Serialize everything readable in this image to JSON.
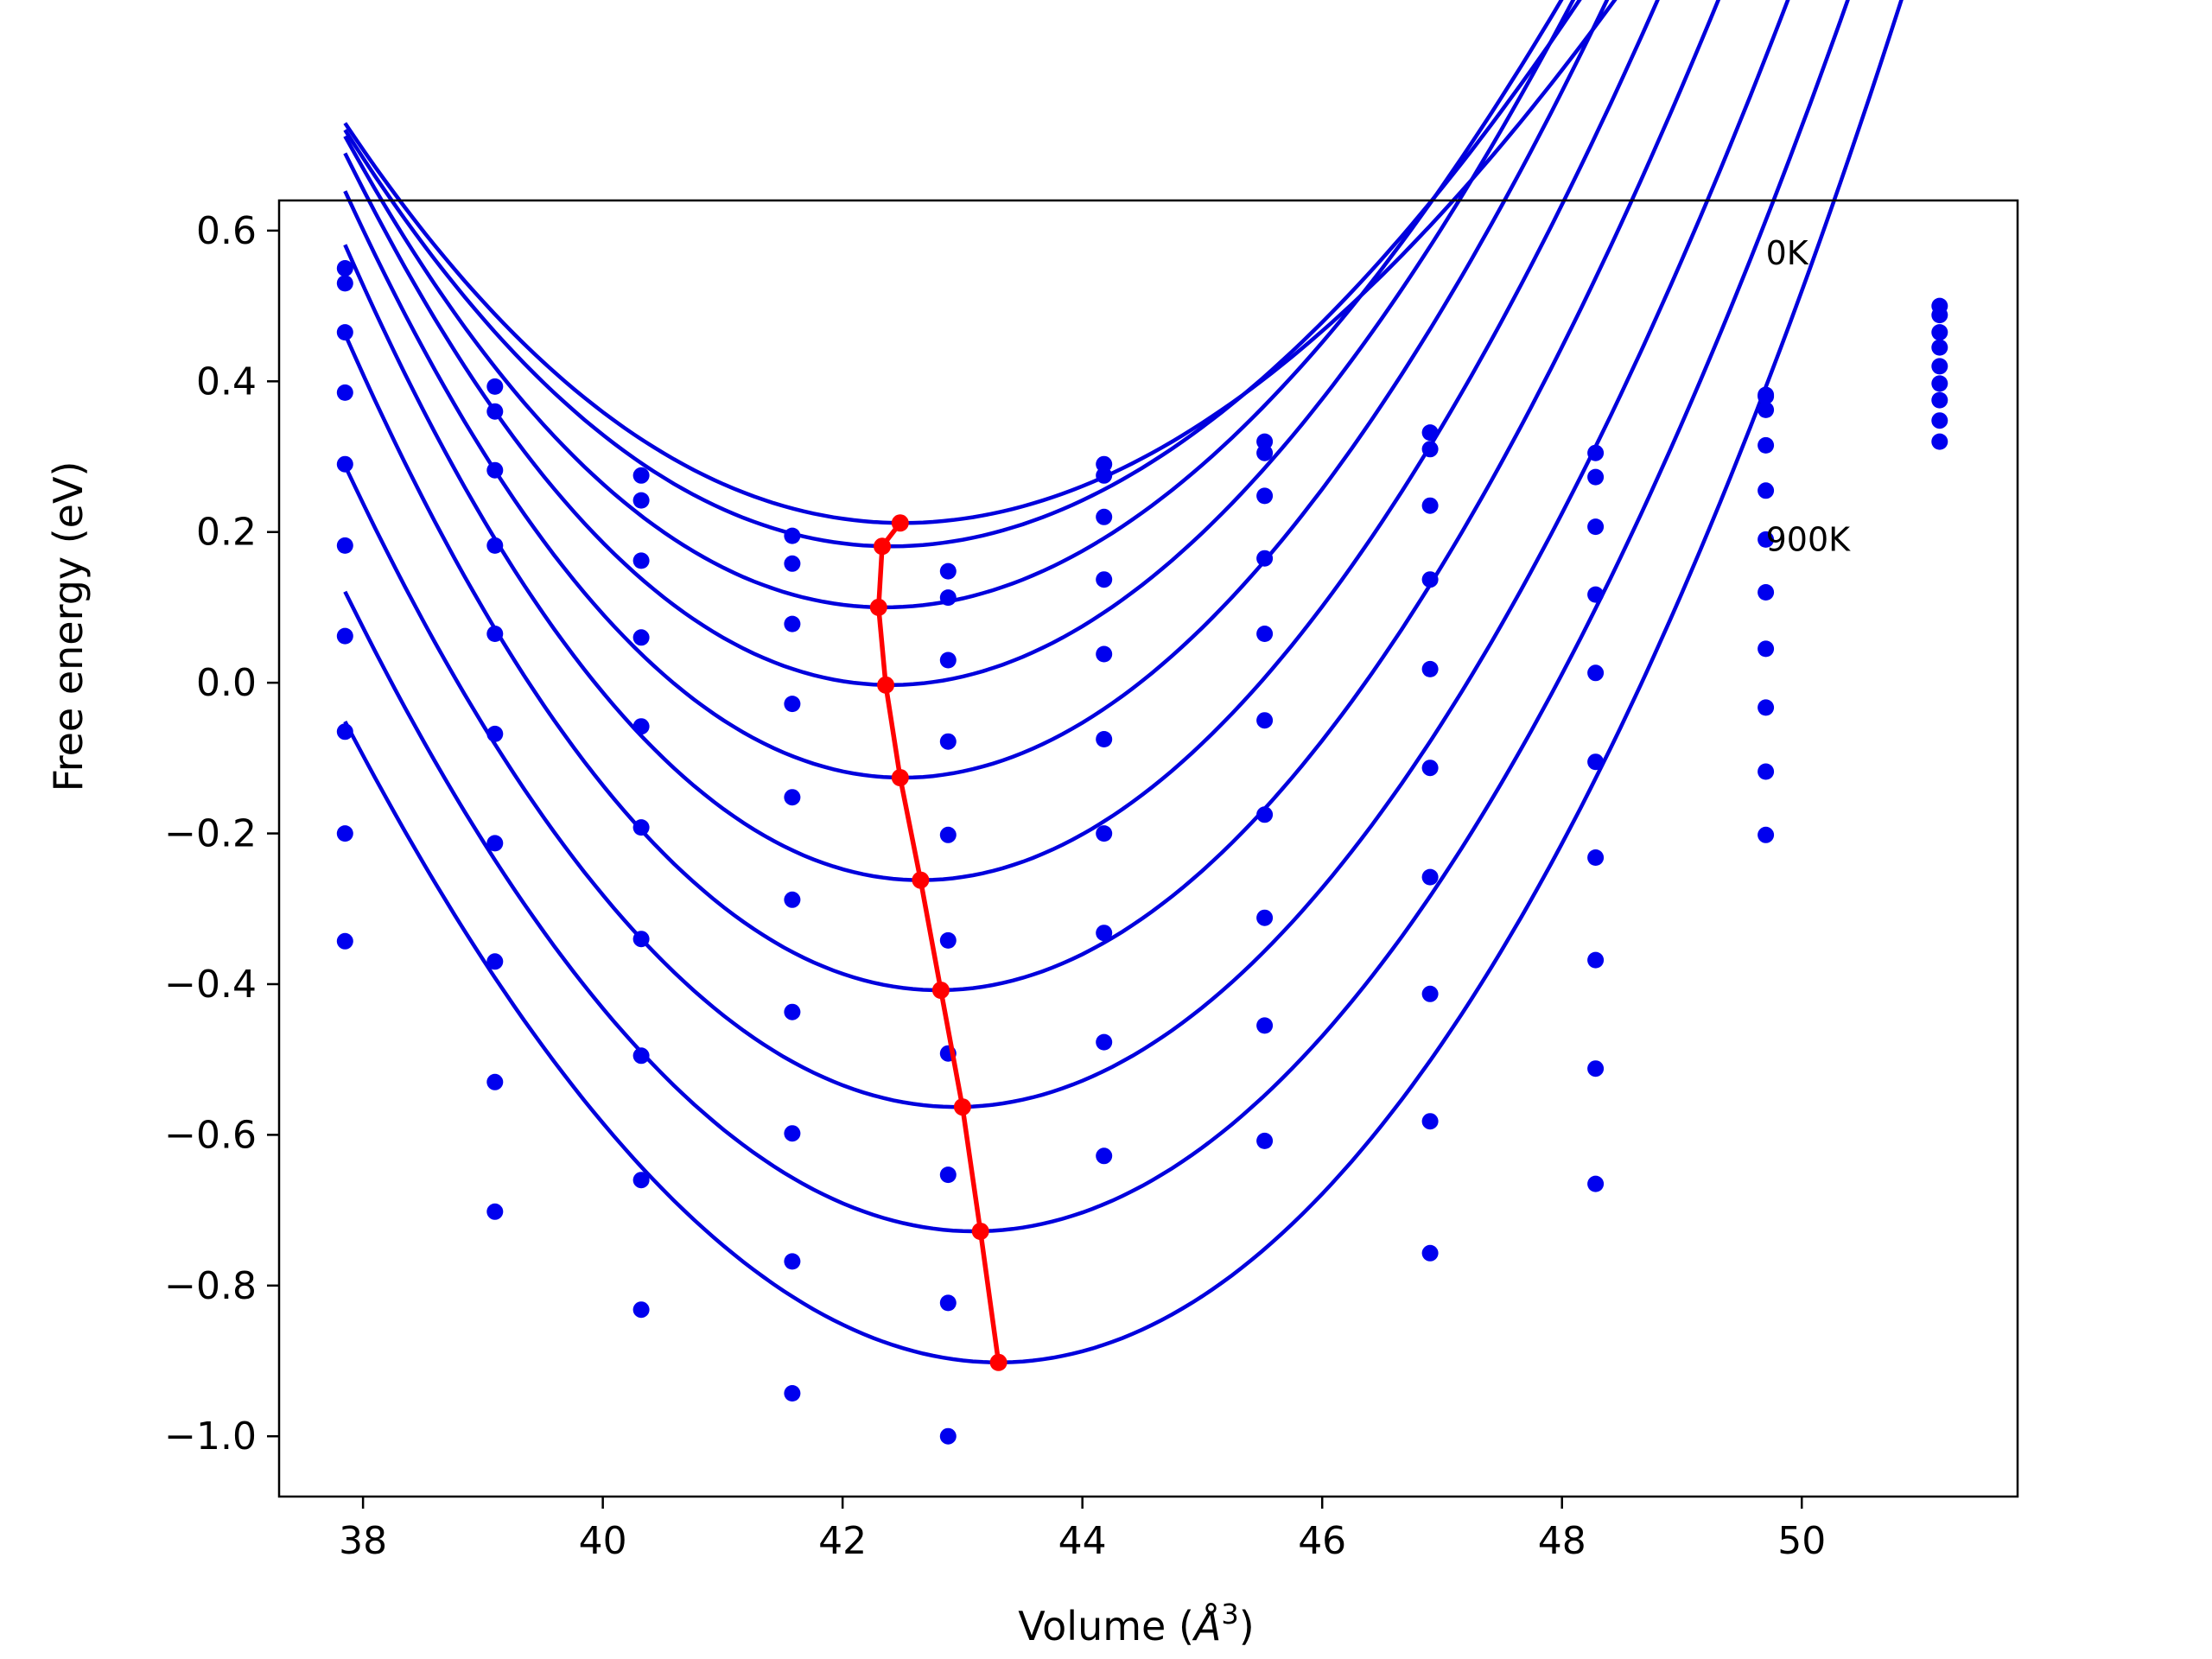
{
  "chart_data": {
    "type": "line",
    "title": "",
    "xlabel": "Volume",
    "xlabel_unit_base": "Å",
    "xlabel_unit_sup": "3",
    "ylabel": "Free energy (eV)",
    "xlim": [
      37.3,
      51.8
    ],
    "ylim": [
      -1.08,
      0.64
    ],
    "xticks": [
      38,
      40,
      42,
      44,
      46,
      48,
      50
    ],
    "xtick_labels": [
      "38",
      "40",
      "42",
      "44",
      "46",
      "48",
      "50"
    ],
    "yticks": [
      0.6,
      0.4,
      0.2,
      0.0,
      -0.2,
      -0.4,
      -0.6,
      -0.8,
      -1.0
    ],
    "ytick_labels": [
      "0.6",
      "0.4",
      "0.2",
      "0.0",
      "−0.2",
      "−0.4",
      "−0.6",
      "−0.8",
      "−1.0"
    ],
    "grid": false,
    "legend": "none",
    "colors": {
      "fit": "#0000dd",
      "points": "#0000ee",
      "minimum": "#ff0000"
    },
    "annotations": [
      {
        "text": "0K",
        "x": 49.7,
        "y": 0.555
      },
      {
        "text": "900K",
        "x": 49.7,
        "y": 0.175
      }
    ],
    "x_range": [
      37.85,
      51.15
    ],
    "volumes": [
      37.85,
      39.1,
      40.32,
      41.58,
      42.88,
      44.18,
      45.52,
      46.9,
      48.28,
      49.7,
      51.15
    ],
    "series": [
      {
        "fit": {
          "a": 0.212,
          "b": 0.0224,
          "c": -0.00046,
          "v0": 42.5
        },
        "points": [
          0.55,
          null,
          0.275,
          0.195,
          0.148,
          0.29,
          0.32,
          0.332,
          0.305,
          0.38,
          0.5
        ]
      },
      {
        "fit": {
          "a": 0.181,
          "b": 0.0246,
          "c": -0.00046,
          "v0": 42.4
        },
        "points": [
          0.53,
          0.393,
          0.242,
          0.158,
          0.113,
          0.275,
          0.305,
          0.31,
          0.273,
          0.382,
          0.488
        ]
      },
      {
        "fit": {
          "a": 0.1,
          "b": 0.0284,
          "c": -0.00055,
          "v0": 42.35
        },
        "points": [
          0.465,
          0.36,
          0.162,
          0.078,
          0.03,
          0.22,
          0.248,
          0.235,
          0.207,
          0.362,
          0.465
        ]
      },
      {
        "fit": {
          "a": -0.003,
          "b": 0.0314,
          "c": -0.00059,
          "v0": 42.4
        },
        "points": [
          0.385,
          0.282,
          0.06,
          -0.028,
          -0.078,
          0.137,
          0.165,
          0.137,
          0.117,
          0.315,
          0.445
        ]
      },
      {
        "fit": {
          "a": -0.126,
          "b": 0.0333,
          "c": -0.00058,
          "v0": 42.5
        },
        "points": [
          0.29,
          0.182,
          -0.058,
          -0.152,
          -0.202,
          0.038,
          0.065,
          0.018,
          0.013,
          0.255,
          0.42
        ]
      },
      {
        "fit": {
          "a": -0.262,
          "b": 0.0341,
          "c": -0.00052,
          "v0": 42.65
        },
        "points": [
          0.182,
          0.065,
          -0.192,
          -0.288,
          -0.342,
          -0.075,
          -0.05,
          -0.113,
          -0.105,
          0.19,
          0.397
        ]
      },
      {
        "fit": {
          "a": -0.408,
          "b": 0.0336,
          "c": -0.00039,
          "v0": 42.8
        },
        "points": [
          0.062,
          -0.068,
          -0.34,
          -0.437,
          -0.492,
          -0.2,
          -0.175,
          -0.258,
          -0.232,
          0.12,
          0.375
        ]
      },
      {
        "fit": {
          "a": -0.563,
          "b": 0.0318,
          "c": -0.00018,
          "v0": 42.95
        },
        "points": [
          -0.065,
          -0.213,
          -0.495,
          -0.598,
          -0.653,
          -0.332,
          -0.312,
          -0.413,
          -0.368,
          0.045,
          0.348
        ]
      },
      {
        "fit": {
          "a": -0.728,
          "b": 0.0308,
          "c": 0.0,
          "v0": 43.1
        },
        "points": [
          -0.2,
          -0.37,
          -0.66,
          -0.768,
          -0.823,
          -0.477,
          -0.455,
          -0.582,
          -0.512,
          -0.033,
          0.32
        ]
      },
      {
        "fit": {
          "a": -0.902,
          "b": 0.03,
          "c": 0.00025,
          "v0": 43.3
        },
        "points": [
          -0.343,
          -0.53,
          -0.832,
          -0.943,
          -1.0,
          -0.628,
          -0.608,
          -0.757,
          -0.665,
          -0.118,
          null
        ]
      },
      {
        "fit": null,
        "points": [
          null,
          -0.702,
          null,
          null,
          null,
          null,
          null,
          null,
          null,
          -0.202,
          null
        ]
      }
    ],
    "minimum_path": {
      "x": [
        42.48,
        42.33,
        42.3,
        42.36,
        42.48,
        42.65,
        42.82,
        43.0,
        43.15,
        43.3
      ],
      "y": [
        0.212,
        0.181,
        0.1,
        -0.003,
        -0.126,
        -0.262,
        -0.408,
        -0.563,
        -0.728,
        -0.902
      ]
    }
  }
}
